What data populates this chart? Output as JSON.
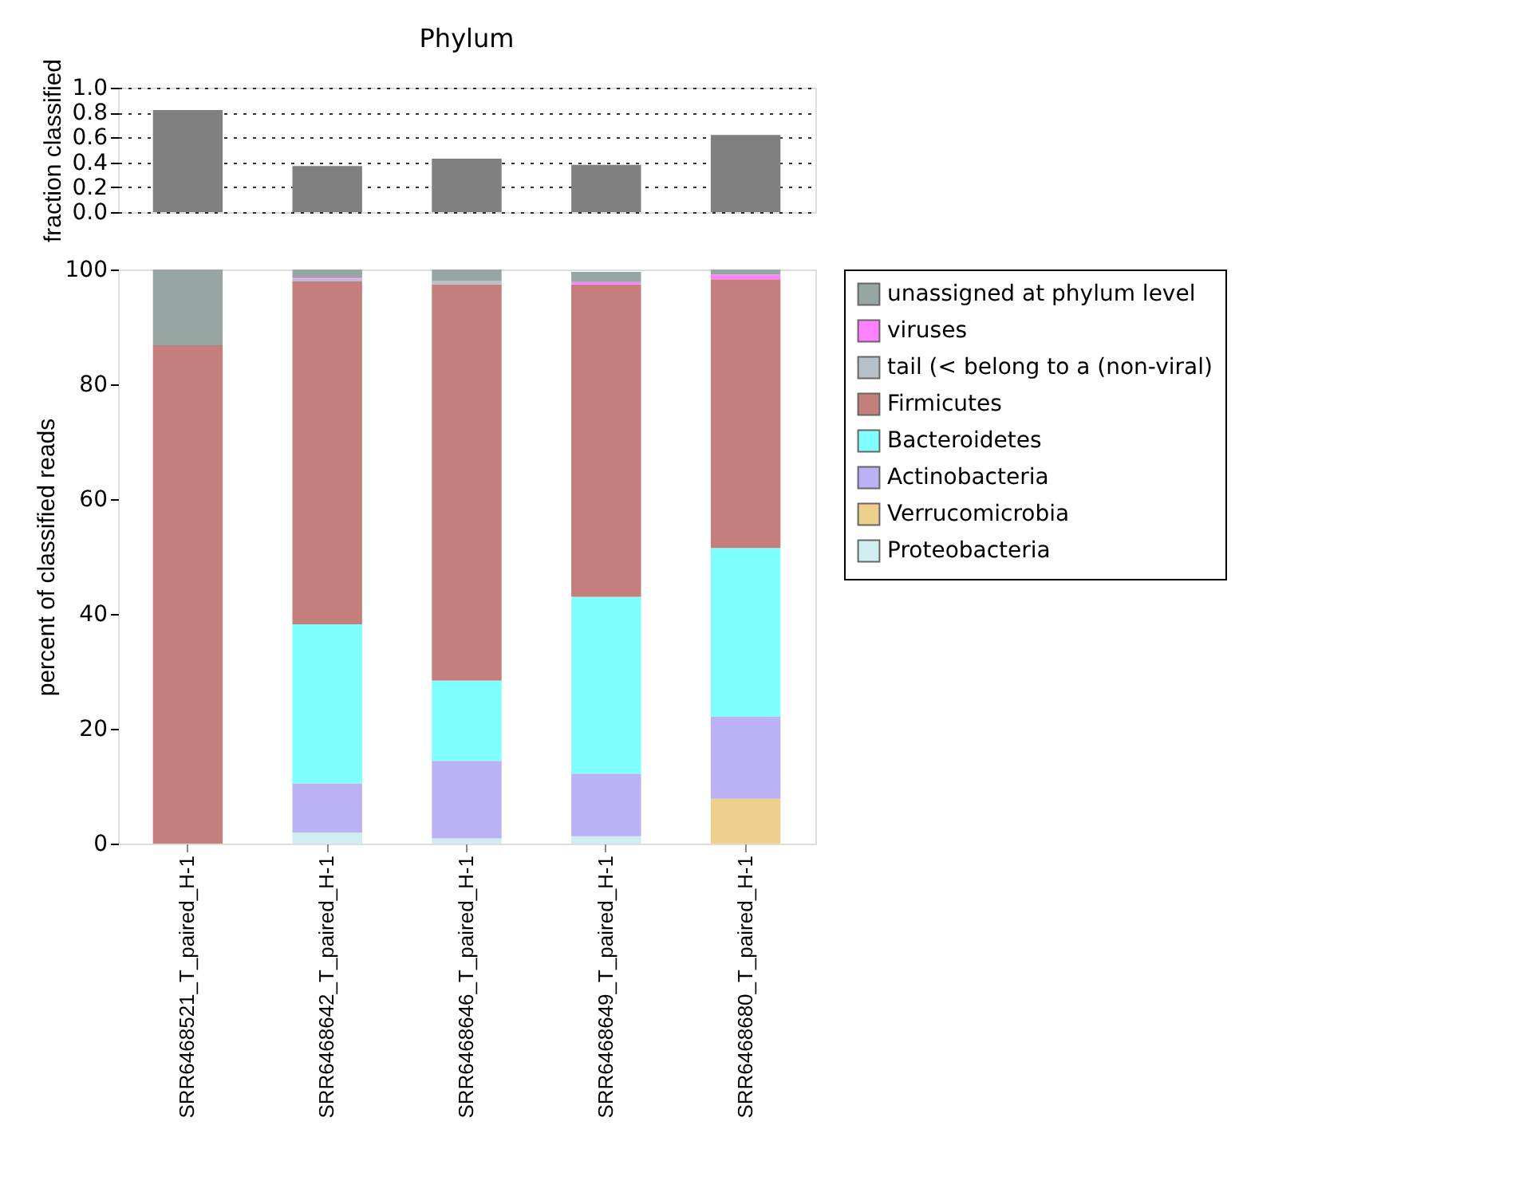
{
  "chart_data": [
    {
      "type": "bar",
      "title": "Phylum",
      "ylabel": "fraction classified",
      "categories": [
        null,
        null,
        null,
        null,
        null
      ],
      "values": [
        0.82,
        0.37,
        0.43,
        0.38,
        0.62
      ],
      "color": "#808080",
      "ylim": [
        0,
        1.0
      ],
      "yticks": [
        {
          "value": 0,
          "label": "0.0"
        },
        {
          "value": 0.2,
          "label": "0.2"
        },
        {
          "value": 0.4,
          "label": "0.4"
        },
        {
          "value": 0.6,
          "label": "0.6"
        },
        {
          "value": 0.8,
          "label": "0.8"
        },
        {
          "value": 1.0,
          "label": "1.0"
        }
      ],
      "grid": "y",
      "tick_labels": "y"
    },
    {
      "type": "bar",
      "stacked": true,
      "ylabel": "percent of classified reads",
      "categories": [
        "SRR6468521_T_paired_H-1",
        "SRR6468642_T_paired_H-1",
        "SRR6468646_T_paired_H-1",
        "SRR6468649_T_paired_H-1",
        "SRR6468680_T_paired_H-1"
      ],
      "ylim": [
        0,
        100
      ],
      "yticks": [
        0,
        20,
        40,
        60,
        80,
        100
      ],
      "legend": "right",
      "series": [
        {
          "name": "Proteobacteria",
          "color": "#d0eef0",
          "values": [
            0,
            1.9,
            0.9,
            1.3,
            0
          ]
        },
        {
          "name": "Verrucomicrobia",
          "color": "#ecd08c",
          "values": [
            0,
            0,
            0,
            0,
            7.8
          ]
        },
        {
          "name": "Actinobacteria",
          "color": "#bab2f4",
          "values": [
            0,
            8.6,
            13.5,
            10.9,
            14.3
          ]
        },
        {
          "name": "Bacteroidetes",
          "color": "#80ffff",
          "values": [
            0,
            27.7,
            14.0,
            30.8,
            29.4
          ]
        },
        {
          "name": "Firmicutes",
          "color": "#c47e7c",
          "values": [
            86.8,
            59.7,
            69.0,
            54.4,
            46.8
          ]
        },
        {
          "name": "tail (< belong to a (non-viral)",
          "color": "#b5c0c8",
          "values": [
            0,
            0.5,
            0.6,
            null,
            0
          ]
        },
        {
          "name": "viruses",
          "color": "#ff80ff",
          "values": [
            0,
            0.2,
            0,
            0.4,
            0.8
          ]
        },
        {
          "name": "unassigned at phylum level",
          "color": "#98a6a3",
          "values": [
            13.2,
            1.4,
            2.0,
            1.8,
            0.9
          ]
        }
      ]
    }
  ]
}
